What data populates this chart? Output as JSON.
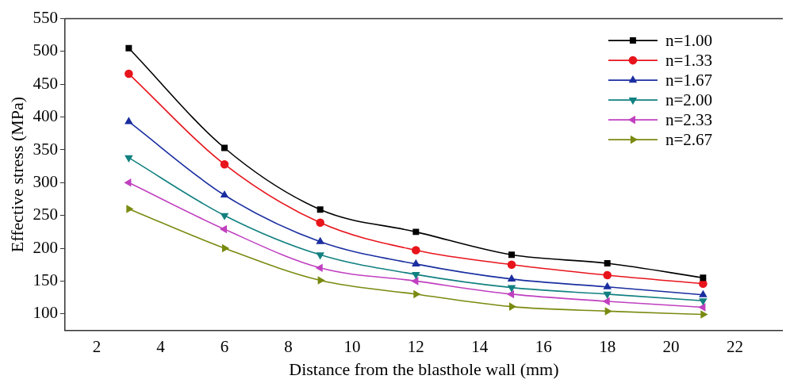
{
  "chart_data": {
    "type": "line",
    "xlabel": "Distance from the blasthole wall (mm)",
    "ylabel": "Effective stress (MPa)",
    "x": [
      3,
      6,
      9,
      12,
      15,
      18,
      21
    ],
    "xlim": [
      1,
      23.5
    ],
    "xticks": [
      2,
      4,
      6,
      8,
      10,
      12,
      14,
      16,
      18,
      20,
      22
    ],
    "ylim": [
      75,
      550
    ],
    "yticks": [
      100,
      150,
      200,
      250,
      300,
      350,
      400,
      450,
      500,
      550
    ],
    "grid": false,
    "legend": "top right",
    "series": [
      {
        "name": "n=1.00",
        "color": "#000000",
        "marker": "square",
        "values": [
          505,
          353,
          259,
          225,
          190,
          177,
          155
        ]
      },
      {
        "name": "n=1.33",
        "color": "#e8141c",
        "marker": "circle",
        "values": [
          466,
          328,
          239,
          197,
          175,
          159,
          146
        ]
      },
      {
        "name": "n=1.67",
        "color": "#1a2ea0",
        "marker": "triangle",
        "values": [
          393,
          281,
          210,
          176,
          153,
          141,
          129
        ]
      },
      {
        "name": "n=2.00",
        "color": "#128080",
        "marker": "triangle-down",
        "values": [
          338,
          250,
          190,
          160,
          140,
          130,
          120
        ]
      },
      {
        "name": "n=2.33",
        "color": "#c040c0",
        "marker": "triangle-left",
        "values": [
          300,
          229,
          170,
          150,
          130,
          119,
          110
        ]
      },
      {
        "name": "n=2.67",
        "color": "#7a8a10",
        "marker": "triangle-right",
        "values": [
          260,
          200,
          151,
          130,
          111,
          104,
          99
        ]
      }
    ]
  }
}
